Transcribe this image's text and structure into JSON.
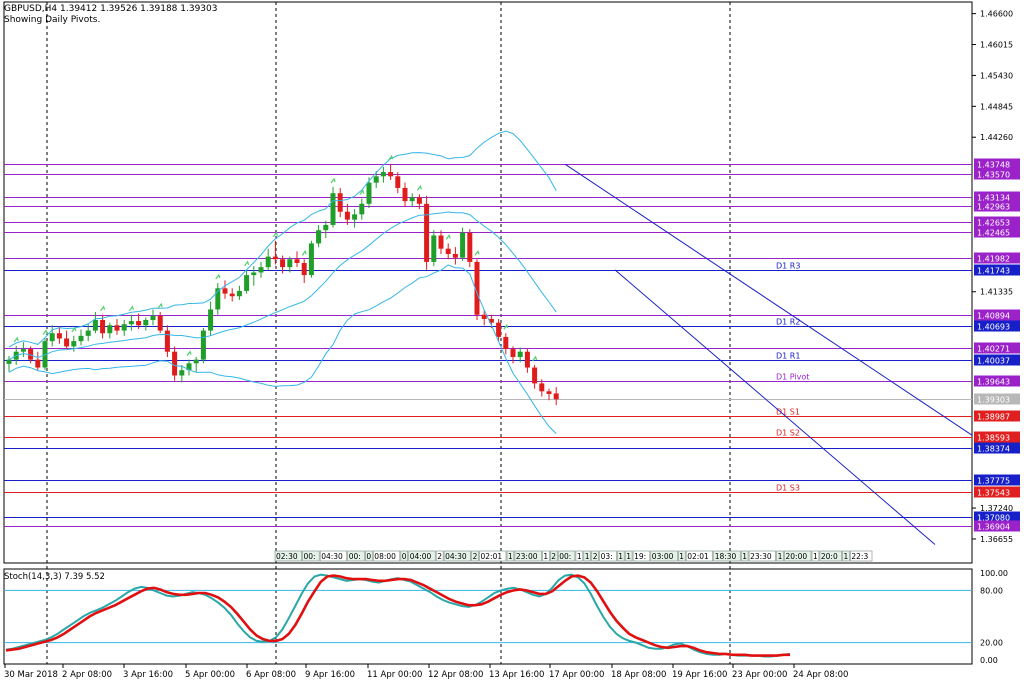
{
  "header": {
    "symbol_line": "GBPUSD,H4  1.39412 1.39526 1.39188 1.39303",
    "pivots_note": "Showing Daily Pivots."
  },
  "colors": {
    "bull": "#1f9e2a",
    "bear": "#e01b1b",
    "band": "#35b6e8",
    "purple": "#9b22c9",
    "blue": "#1720c8",
    "red": "#e02020",
    "stoch_main": "#2aa7a7",
    "stoch_signal": "#e01010"
  },
  "price_axis_labels": [
    "1.46600",
    "1.46015",
    "1.45430",
    "1.44845",
    "1.44260",
    "1.41335",
    "1.37240",
    "1.36655"
  ],
  "levels": [
    {
      "price": 1.43748,
      "label": "1.43748",
      "color": "purple",
      "highlight": true
    },
    {
      "price": 1.4357,
      "label": "1.43570",
      "color": "purple",
      "highlight": true
    },
    {
      "price": 1.43134,
      "label": "1.43134",
      "color": "purple",
      "highlight": true
    },
    {
      "price": 1.42963,
      "label": "1.42963",
      "color": "purple",
      "highlight": true
    },
    {
      "price": 1.42653,
      "label": "1.42653",
      "color": "purple",
      "highlight": true
    },
    {
      "price": 1.42465,
      "label": "1.42465",
      "color": "purple",
      "highlight": true
    },
    {
      "price": 1.41982,
      "label": "1.41982",
      "color": "purple",
      "highlight": true
    },
    {
      "price": 1.41743,
      "label": "1.41743",
      "color": "blue",
      "highlight": true,
      "name": "D1  R3"
    },
    {
      "price": 1.40894,
      "label": "1.40894",
      "color": "purple",
      "highlight": true
    },
    {
      "price": 1.40693,
      "label": "1.40693",
      "color": "blue",
      "highlight": true,
      "name": "D1  R2"
    },
    {
      "price": 1.40271,
      "label": "1.40271",
      "color": "purple",
      "highlight": true
    },
    {
      "price": 1.40037,
      "label": "1.40037",
      "color": "blue",
      "highlight": true,
      "name": "D1  R1"
    },
    {
      "price": 1.39643,
      "label": "1.39643",
      "color": "purple",
      "highlight": true,
      "name": "D1  Pivot"
    },
    {
      "price": 1.39303,
      "label": "1.39303",
      "color": "gray",
      "highlight": true
    },
    {
      "price": 1.38987,
      "label": "1.38987",
      "color": "red",
      "highlight": true,
      "name": "D1  S1"
    },
    {
      "price": 1.38593,
      "label": "1.38593",
      "color": "red",
      "highlight": true,
      "name": "D1  S2"
    },
    {
      "price": 1.38374,
      "label": "1.38374",
      "color": "blue",
      "highlight": true
    },
    {
      "price": 1.37775,
      "label": "1.37775",
      "color": "blue",
      "highlight": true
    },
    {
      "price": 1.37543,
      "label": "1.37543",
      "color": "red",
      "highlight": true,
      "name": "D1  S3"
    },
    {
      "price": 1.3708,
      "label": "1.37080",
      "color": "blue",
      "highlight": true
    },
    {
      "price": 1.36904,
      "label": "1.36904",
      "color": "purple",
      "highlight": true
    }
  ],
  "date_labels": [
    "30 Mar 2018",
    "2 Apr 08:00",
    "3 Apr 16:00",
    "5 Apr 00:00",
    "6 Apr 08:00",
    "9 Apr 16:00",
    "11 Apr 00:00",
    "12 Apr 08:00",
    "13 Apr 16:00",
    "17 Apr 00:00",
    "18 Apr 08:00",
    "19 Apr 16:00",
    "23 Apr 00:00",
    "24 Apr 08:00"
  ],
  "time_strip": [
    "02:30",
    "00:",
    "04:30",
    "00:",
    "0",
    "08:00",
    "0",
    "04:00",
    "2",
    "04:30",
    "2",
    "02:01",
    "1",
    "23:00",
    "1",
    "2",
    "00:",
    "1",
    "1",
    "2",
    "03:",
    "1",
    "1",
    "19:",
    "03:00",
    "1",
    "02:01",
    "18:30",
    "1",
    "23:30",
    "1",
    "20:00",
    "1",
    "20:0",
    "1",
    "22:3"
  ],
  "stoch": {
    "label": "Stoch(14,3,3)  7.39  5.52",
    "axis_labels": [
      "100.00",
      "80.00",
      "20.00",
      "0.00"
    ],
    "main": [
      12,
      13,
      15,
      17,
      19,
      21,
      23,
      26,
      30,
      35,
      40,
      45,
      50,
      54,
      57,
      60,
      64,
      68,
      73,
      78,
      82,
      84,
      83,
      80,
      77,
      74,
      73,
      74,
      76,
      78,
      77,
      75,
      71,
      66,
      60,
      52,
      42,
      33,
      26,
      22,
      21,
      22,
      26,
      35,
      48,
      62,
      76,
      88,
      96,
      98,
      97,
      95,
      93,
      91,
      92,
      93,
      92,
      90,
      89,
      91,
      93,
      94,
      92,
      90,
      86,
      82,
      78,
      73,
      69,
      66,
      64,
      62,
      61,
      63,
      67,
      72,
      77,
      80,
      82,
      83,
      81,
      78,
      75,
      73,
      76,
      83,
      92,
      97,
      98,
      95,
      88,
      76,
      62,
      49,
      38,
      30,
      25,
      22,
      20,
      17,
      14,
      13,
      13,
      15,
      18,
      19,
      16,
      12,
      9,
      7,
      6,
      6,
      7,
      6,
      5,
      5,
      5,
      5,
      4,
      4,
      5,
      6,
      7
    ],
    "signal": [
      11,
      12,
      13,
      15,
      17,
      19,
      21,
      23,
      26,
      30,
      35,
      40,
      45,
      50,
      54,
      57,
      60,
      63,
      67,
      71,
      75,
      79,
      82,
      83,
      81,
      78,
      76,
      75,
      75,
      76,
      77,
      77,
      75,
      72,
      67,
      61,
      53,
      44,
      35,
      28,
      24,
      22,
      22,
      24,
      30,
      40,
      53,
      67,
      79,
      90,
      96,
      97,
      96,
      94,
      93,
      93,
      93,
      92,
      91,
      91,
      92,
      93,
      93,
      92,
      89,
      86,
      82,
      78,
      74,
      70,
      67,
      65,
      63,
      63,
      64,
      67,
      71,
      75,
      78,
      80,
      81,
      80,
      78,
      76,
      76,
      79,
      85,
      91,
      96,
      97,
      95,
      89,
      79,
      67,
      55,
      45,
      37,
      30,
      26,
      23,
      20,
      17,
      15,
      14,
      15,
      16,
      16,
      14,
      11,
      9,
      8,
      7,
      7,
      6,
      6,
      6,
      5,
      5,
      5,
      5,
      5,
      6,
      6
    ]
  },
  "chart_data": {
    "type": "candlestick",
    "title": "GBPUSD,H4  1.39412 1.39526 1.39188 1.39303",
    "series_ohlc": [
      [
        1.3997,
        1.4012,
        1.3982,
        1.4005
      ],
      [
        1.4005,
        1.4031,
        1.3995,
        1.402
      ],
      [
        1.402,
        1.4038,
        1.401,
        1.4025
      ],
      [
        1.4025,
        1.403,
        1.3998,
        1.4005
      ],
      [
        1.4005,
        1.402,
        1.3985,
        1.399
      ],
      [
        1.399,
        1.4045,
        1.3985,
        1.404
      ],
      [
        1.404,
        1.407,
        1.403,
        1.4055
      ],
      [
        1.4055,
        1.4068,
        1.4035,
        1.4045
      ],
      [
        1.4045,
        1.406,
        1.4025,
        1.403
      ],
      [
        1.403,
        1.405,
        1.402,
        1.404
      ],
      [
        1.404,
        1.4062,
        1.4032,
        1.405
      ],
      [
        1.405,
        1.4072,
        1.404,
        1.406
      ],
      [
        1.406,
        1.4095,
        1.4055,
        1.408
      ],
      [
        1.408,
        1.409,
        1.4045,
        1.4055
      ],
      [
        1.4055,
        1.4075,
        1.4045,
        1.407
      ],
      [
        1.407,
        1.4082,
        1.4052,
        1.406
      ],
      [
        1.406,
        1.408,
        1.405,
        1.4072
      ],
      [
        1.4072,
        1.409,
        1.406,
        1.4078
      ],
      [
        1.4078,
        1.4092,
        1.4063,
        1.407
      ],
      [
        1.407,
        1.4085,
        1.406,
        1.408
      ],
      [
        1.408,
        1.41,
        1.407,
        1.4088
      ],
      [
        1.4088,
        1.4095,
        1.4055,
        1.406
      ],
      [
        1.406,
        1.407,
        1.401,
        1.402
      ],
      [
        1.402,
        1.403,
        1.3965,
        1.3975
      ],
      [
        1.3975,
        1.3995,
        1.3962,
        1.3985
      ],
      [
        1.3985,
        1.4005,
        1.3975,
        1.3998
      ],
      [
        1.3998,
        1.401,
        1.3982,
        1.4005
      ],
      [
        1.4005,
        1.4065,
        1.3998,
        1.406
      ],
      [
        1.406,
        1.4115,
        1.405,
        1.41
      ],
      [
        1.41,
        1.415,
        1.409,
        1.414
      ],
      [
        1.414,
        1.4155,
        1.412,
        1.413
      ],
      [
        1.413,
        1.414,
        1.4115,
        1.4125
      ],
      [
        1.4125,
        1.4145,
        1.4118,
        1.4135
      ],
      [
        1.4135,
        1.4175,
        1.413,
        1.4165
      ],
      [
        1.4165,
        1.4182,
        1.4145,
        1.417
      ],
      [
        1.417,
        1.419,
        1.416,
        1.418
      ],
      [
        1.418,
        1.4215,
        1.4175,
        1.42
      ],
      [
        1.42,
        1.423,
        1.4185,
        1.4195
      ],
      [
        1.4195,
        1.4202,
        1.4168,
        1.418
      ],
      [
        1.418,
        1.42,
        1.417,
        1.4195
      ],
      [
        1.4195,
        1.421,
        1.418,
        1.4188
      ],
      [
        1.4188,
        1.4195,
        1.415,
        1.4165
      ],
      [
        1.4165,
        1.423,
        1.416,
        1.4225
      ],
      [
        1.4225,
        1.426,
        1.4218,
        1.425
      ],
      [
        1.425,
        1.4268,
        1.4235,
        1.426
      ],
      [
        1.426,
        1.4332,
        1.4255,
        1.432
      ],
      [
        1.432,
        1.433,
        1.4275,
        1.4285
      ],
      [
        1.4285,
        1.43,
        1.426,
        1.427
      ],
      [
        1.427,
        1.429,
        1.4255,
        1.428
      ],
      [
        1.428,
        1.431,
        1.427,
        1.43
      ],
      [
        1.43,
        1.435,
        1.4292,
        1.434
      ],
      [
        1.434,
        1.4362,
        1.433,
        1.4352
      ],
      [
        1.4352,
        1.437,
        1.434,
        1.436
      ],
      [
        1.436,
        1.4375,
        1.4345,
        1.4352
      ],
      [
        1.4352,
        1.436,
        1.432,
        1.433
      ],
      [
        1.433,
        1.434,
        1.4295,
        1.4305
      ],
      [
        1.4305,
        1.432,
        1.4295,
        1.4312
      ],
      [
        1.4312,
        1.4318,
        1.429,
        1.43
      ],
      [
        1.43,
        1.4315,
        1.4175,
        1.419
      ],
      [
        1.419,
        1.425,
        1.4182,
        1.424
      ],
      [
        1.424,
        1.425,
        1.4205,
        1.4215
      ],
      [
        1.4215,
        1.4225,
        1.4195,
        1.4205
      ],
      [
        1.4205,
        1.4218,
        1.4185,
        1.4198
      ],
      [
        1.4198,
        1.4255,
        1.4192,
        1.4245
      ],
      [
        1.4245,
        1.4252,
        1.418,
        1.419
      ],
      [
        1.419,
        1.4195,
        1.408,
        1.409
      ],
      [
        1.409,
        1.4098,
        1.407,
        1.4082
      ],
      [
        1.4082,
        1.409,
        1.4065,
        1.4075
      ],
      [
        1.4075,
        1.4082,
        1.404,
        1.4048
      ],
      [
        1.4048,
        1.4055,
        1.4015,
        1.4025
      ],
      [
        1.4025,
        1.403,
        1.3998,
        1.401
      ],
      [
        1.401,
        1.4028,
        1.4,
        1.402
      ],
      [
        1.402,
        1.4025,
        1.398,
        1.399
      ],
      [
        1.399,
        1.3995,
        1.395,
        1.396
      ],
      [
        1.396,
        1.3968,
        1.3935,
        1.3945
      ],
      [
        1.3945,
        1.395,
        1.3928,
        1.394
      ],
      [
        1.3941,
        1.3953,
        1.3919,
        1.393
      ]
    ]
  }
}
